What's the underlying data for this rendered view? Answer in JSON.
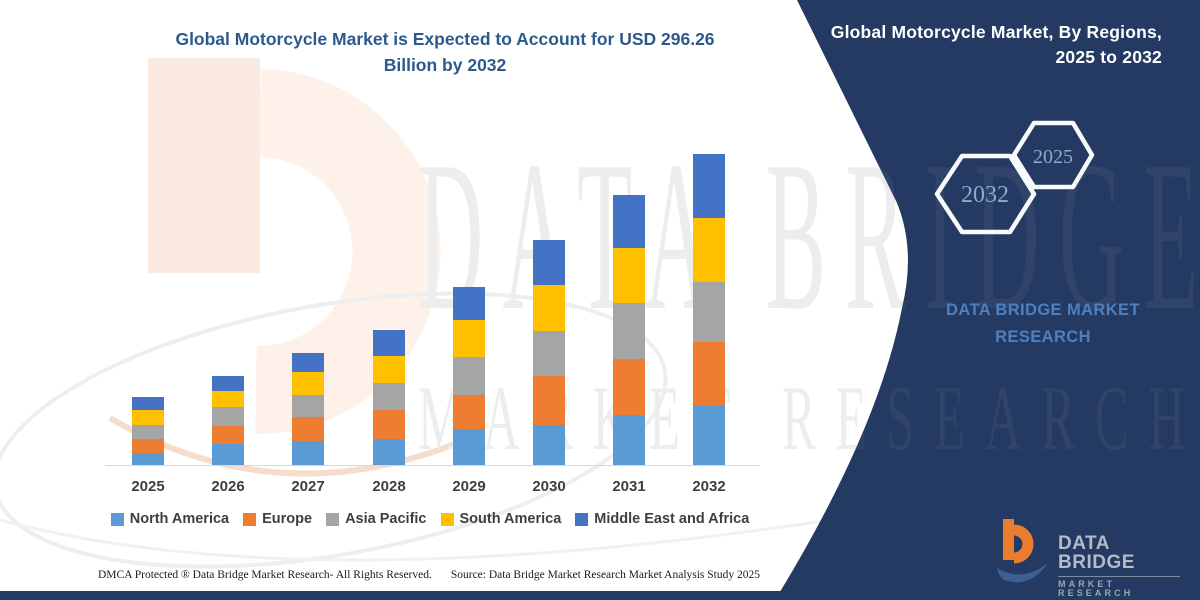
{
  "chart": {
    "title_line1": "Global Motorcycle Market is Expected to Account for USD 296.26",
    "title_line2": "Billion by 2032",
    "title_color": "#2d5a8e"
  },
  "chart_data": {
    "type": "bar",
    "stacked": true,
    "title": "Global Motorcycle Market is Expected to Account for USD 296.26 Billion by 2032",
    "unit": "USD Billion",
    "categories": [
      "2025",
      "2026",
      "2027",
      "2028",
      "2029",
      "2030",
      "2031",
      "2032"
    ],
    "series": [
      {
        "name": "North America",
        "color": "#5B9BD5",
        "values": [
          11.5,
          20.0,
          23.0,
          25.0,
          34.5,
          38.5,
          48.0,
          56.0
        ]
      },
      {
        "name": "Europe",
        "color": "#ED7D31",
        "values": [
          13.5,
          17.5,
          23.0,
          27.0,
          32.5,
          46.0,
          53.0,
          61.5
        ]
      },
      {
        "name": "Asia Pacific",
        "color": "#A5A5A5",
        "values": [
          13.5,
          17.5,
          21.0,
          26.0,
          35.5,
          43.5,
          53.0,
          57.0
        ]
      },
      {
        "name": "South America",
        "color": "#FFC000",
        "values": [
          13.5,
          15.5,
          22.0,
          26.0,
          35.5,
          43.5,
          53.0,
          60.5
        ]
      },
      {
        "name": "Middle East and Africa",
        "color": "#4472C4",
        "values": [
          12.5,
          14.5,
          17.5,
          25.0,
          32.0,
          42.5,
          50.0,
          61.26
        ]
      }
    ],
    "totals": [
      64.5,
      85.0,
      106.5,
      129.0,
      170.0,
      214.0,
      257.0,
      296.26
    ],
    "xlabel": "",
    "ylabel": "",
    "ylim": [
      0,
      310
    ],
    "grid": false,
    "legend_position": "bottom"
  },
  "side_panel": {
    "bg_color": "#243A62",
    "title_line1": "Global Motorcycle Market, By Regions,",
    "title_line2": "2025 to 2032",
    "hexagon_large_label": "2032",
    "hexagon_small_label": "2025",
    "brand_line1": "DATA BRIDGE MARKET",
    "brand_line2": "RESEARCH"
  },
  "watermark": {
    "line1": "DATA BRIDGE",
    "line2": "MARKET RESEARCH"
  },
  "footer": {
    "dmca": "DMCA Protected ® Data Bridge Market Research-  All Rights Reserved.",
    "source": "Source: Data Bridge Market Research  Market Analysis Study 2025"
  },
  "logo": {
    "name_top": "DATA BRIDGE",
    "name_bottom": "MARKET RESEARCH"
  }
}
